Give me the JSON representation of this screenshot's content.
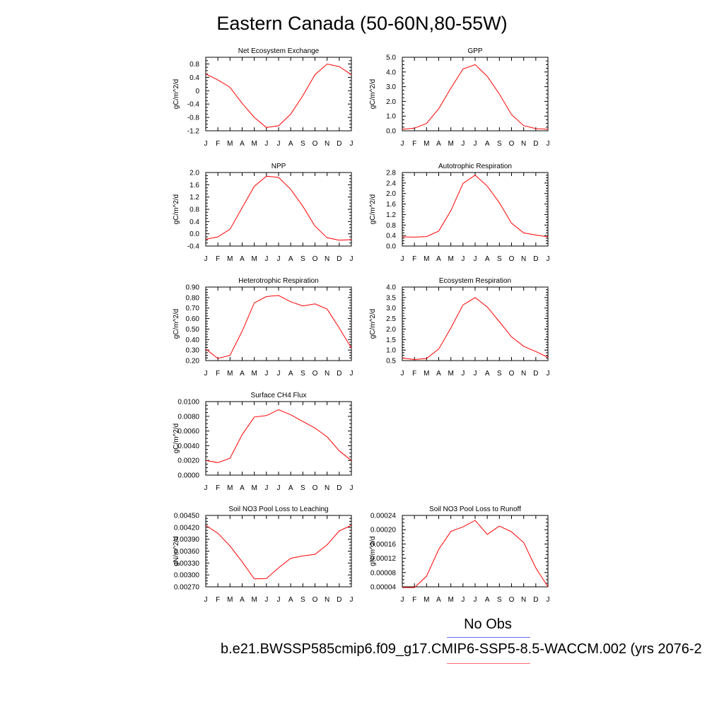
{
  "title": "Eastern Canada (50-60N,80-55W)",
  "legend": {
    "obs_label": "No Obs",
    "case_label": "b.e21.BWSSP585cmip6.f09_g17.CMIP6-SSP5-8.5-WACCM.002 (yrs 2076-2",
    "obs_color": "#6b6bff",
    "case_color": "#ff0000"
  },
  "chart_data": [
    {
      "type": "line",
      "title": "Net Ecosystem Exchange",
      "ylabel": "gC/m^2/d",
      "xticks": [
        "J",
        "F",
        "M",
        "A",
        "M",
        "J",
        "J",
        "A",
        "S",
        "O",
        "N",
        "D",
        "J"
      ],
      "ylim": [
        -1.2,
        1.0
      ],
      "yticks": [
        "-1.2",
        "-0.8",
        "-0.4",
        "0",
        "0.4",
        "0.8"
      ],
      "ytick_values": [
        -1.2,
        -0.8,
        -0.4,
        0,
        0.4,
        0.8
      ],
      "series": [
        {
          "values": [
            0.5,
            0.32,
            0.1,
            -0.38,
            -0.8,
            -1.1,
            -1.05,
            -0.7,
            -0.15,
            0.48,
            0.8,
            0.72,
            0.48
          ]
        }
      ]
    },
    {
      "type": "line",
      "title": "GPP",
      "ylabel": "gC/m^2/d",
      "xticks": [
        "J",
        "F",
        "M",
        "A",
        "M",
        "J",
        "J",
        "A",
        "S",
        "O",
        "N",
        "D",
        "J"
      ],
      "ylim": [
        0.0,
        5.0
      ],
      "yticks": [
        "0.0",
        "1.0",
        "2.0",
        "3.0",
        "4.0",
        "5.0"
      ],
      "ytick_values": [
        0,
        1,
        2,
        3,
        4,
        5
      ],
      "series": [
        {
          "values": [
            0.1,
            0.18,
            0.5,
            1.5,
            2.9,
            4.2,
            4.5,
            3.7,
            2.5,
            1.1,
            0.35,
            0.15,
            0.1
          ]
        }
      ]
    },
    {
      "type": "line",
      "title": "NPP",
      "ylabel": "gC/m^2/d",
      "xticks": [
        "J",
        "F",
        "M",
        "A",
        "M",
        "J",
        "J",
        "A",
        "S",
        "O",
        "N",
        "D",
        "J"
      ],
      "ylim": [
        -0.4,
        2.0
      ],
      "yticks": [
        "-0.4",
        "0.0",
        "0.4",
        "0.8",
        "1.2",
        "1.6",
        "2.0"
      ],
      "ytick_values": [
        -0.4,
        0,
        0.4,
        0.8,
        1.2,
        1.6,
        2.0
      ],
      "series": [
        {
          "values": [
            -0.18,
            -0.1,
            0.15,
            0.85,
            1.55,
            1.88,
            1.84,
            1.45,
            0.9,
            0.25,
            -0.13,
            -0.21,
            -0.19
          ]
        }
      ]
    },
    {
      "type": "line",
      "title": "Autotrophic Respiration",
      "ylabel": "gC/m^2/d",
      "xticks": [
        "J",
        "F",
        "M",
        "A",
        "M",
        "J",
        "J",
        "A",
        "S",
        "O",
        "N",
        "D",
        "J"
      ],
      "ylim": [
        0.0,
        2.8
      ],
      "yticks": [
        "0.0",
        "0.4",
        "0.8",
        "1.2",
        "1.6",
        "2.0",
        "2.4",
        "2.8"
      ],
      "ytick_values": [
        0,
        0.4,
        0.8,
        1.2,
        1.6,
        2.0,
        2.4,
        2.8
      ],
      "series": [
        {
          "values": [
            0.35,
            0.34,
            0.36,
            0.57,
            1.35,
            2.38,
            2.7,
            2.28,
            1.65,
            0.87,
            0.5,
            0.42,
            0.35
          ]
        }
      ]
    },
    {
      "type": "line",
      "title": "Heterotrophic Respiration",
      "ylabel": "gC/m^2/d",
      "xticks": [
        "J",
        "F",
        "M",
        "A",
        "M",
        "J",
        "J",
        "A",
        "S",
        "O",
        "N",
        "D",
        "J"
      ],
      "ylim": [
        0.2,
        0.9
      ],
      "yticks": [
        "0.20",
        "0.30",
        "0.40",
        "0.50",
        "0.60",
        "0.70",
        "0.80",
        "0.90"
      ],
      "ytick_values": [
        0.2,
        0.3,
        0.4,
        0.5,
        0.6,
        0.7,
        0.8,
        0.9
      ],
      "series": [
        {
          "values": [
            0.31,
            0.22,
            0.25,
            0.48,
            0.75,
            0.81,
            0.82,
            0.76,
            0.72,
            0.74,
            0.69,
            0.51,
            0.32
          ]
        }
      ]
    },
    {
      "type": "line",
      "title": "Ecosystem Respiration",
      "ylabel": "gC/m^2/d",
      "xticks": [
        "J",
        "F",
        "M",
        "A",
        "M",
        "J",
        "J",
        "A",
        "S",
        "O",
        "N",
        "D",
        "J"
      ],
      "ylim": [
        0.5,
        4.0
      ],
      "yticks": [
        "0.5",
        "1.0",
        "1.5",
        "2.0",
        "2.5",
        "3.0",
        "3.5",
        "4.0"
      ],
      "ytick_values": [
        0.5,
        1.0,
        1.5,
        2.0,
        2.5,
        3.0,
        3.5,
        4.0
      ],
      "series": [
        {
          "values": [
            0.62,
            0.55,
            0.6,
            1.05,
            2.05,
            3.15,
            3.5,
            3.05,
            2.35,
            1.63,
            1.18,
            0.93,
            0.65
          ]
        }
      ]
    },
    {
      "type": "line",
      "title": "Surface CH4 Flux",
      "ylabel": "gC/m^2/d",
      "xticks": [
        "J",
        "F",
        "M",
        "A",
        "M",
        "J",
        "J",
        "A",
        "S",
        "O",
        "N",
        "D",
        "J"
      ],
      "ylim": [
        0.0,
        0.01
      ],
      "yticks": [
        "0.0000",
        "0.0020",
        "0.0040",
        "0.0060",
        "0.0080",
        "0.0100"
      ],
      "ytick_values": [
        0,
        0.002,
        0.004,
        0.006,
        0.008,
        0.01
      ],
      "series": [
        {
          "values": [
            0.002,
            0.0017,
            0.0023,
            0.0055,
            0.0079,
            0.0081,
            0.0089,
            0.0082,
            0.0073,
            0.0064,
            0.0052,
            0.0033,
            0.002
          ]
        }
      ]
    },
    {
      "type": "line",
      "title": "Soil NO3 Pool Loss to Leaching",
      "ylabel": "gN/m^2/d",
      "xticks": [
        "J",
        "F",
        "M",
        "A",
        "M",
        "J",
        "J",
        "A",
        "S",
        "O",
        "N",
        "D",
        "J"
      ],
      "ylim": [
        0.0027,
        0.0045
      ],
      "yticks": [
        "0.00270",
        "0.00300",
        "0.00330",
        "0.00360",
        "0.00390",
        "0.00420",
        "0.00450"
      ],
      "ytick_values": [
        0.0027,
        0.003,
        0.0033,
        0.0036,
        0.0039,
        0.0042,
        0.0045
      ],
      "series": [
        {
          "values": [
            0.00425,
            0.00405,
            0.00373,
            0.00333,
            0.0029,
            0.00291,
            0.00318,
            0.00342,
            0.00348,
            0.00352,
            0.00376,
            0.00411,
            0.00425
          ]
        }
      ]
    },
    {
      "type": "line",
      "title": "Soil NO3 Pool Loss to Runoff",
      "ylabel": "gN/m^2/d",
      "xticks": [
        "J",
        "F",
        "M",
        "A",
        "M",
        "J",
        "J",
        "A",
        "S",
        "O",
        "N",
        "D",
        "J"
      ],
      "ylim": [
        4e-05,
        0.00024
      ],
      "yticks": [
        "0.00004",
        "0.00008",
        "0.00012",
        "0.00016",
        "0.00020",
        "0.00024"
      ],
      "ytick_values": [
        4e-05,
        8e-05,
        0.00012,
        0.00016,
        0.0002,
        0.00024
      ],
      "series": [
        {
          "values": [
            3.8e-05,
            3.8e-05,
            7e-05,
            0.000145,
            0.000195,
            0.000208,
            0.000226,
            0.000187,
            0.00021,
            0.000194,
            0.000164,
            9.3e-05,
            4e-05
          ]
        }
      ]
    }
  ]
}
